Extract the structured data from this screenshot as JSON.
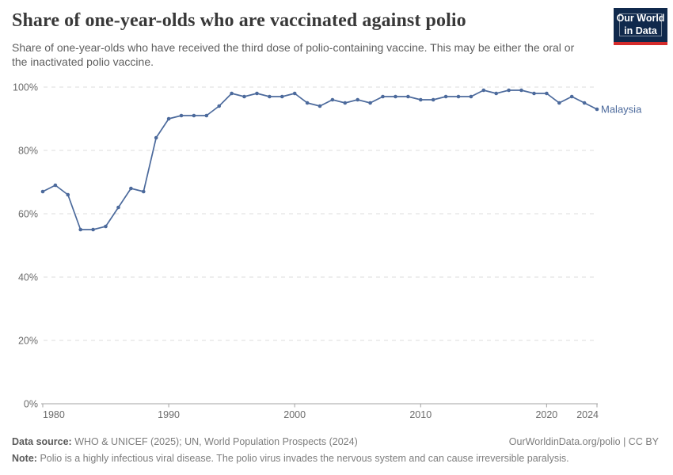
{
  "header": {
    "title": "Share of one-year-olds who are vaccinated against polio",
    "subtitle": "Share of one-year-olds who have received the third dose of polio-containing vaccine. This may be either the oral or the inactivated polio vaccine.",
    "logo_line1": "Our World",
    "logo_line2": "in Data"
  },
  "chart_data": {
    "type": "line",
    "title": "Share of one-year-olds who are vaccinated against polio",
    "xlabel": "",
    "ylabel": "",
    "xlim": [
      1980,
      2024
    ],
    "ylim": [
      0,
      100
    ],
    "x_ticks": [
      1980,
      1990,
      2000,
      2010,
      2020,
      2024
    ],
    "y_ticks": [
      0,
      20,
      40,
      60,
      80,
      100
    ],
    "y_tick_suffix": "%",
    "grid": "horizontal-dashed",
    "legend_position": "end-of-line-label",
    "entity_label": "Malaysia",
    "series": [
      {
        "name": "Malaysia",
        "color": "#4C6A9C",
        "x": [
          1980,
          1981,
          1982,
          1983,
          1984,
          1985,
          1986,
          1987,
          1988,
          1989,
          1990,
          1991,
          1992,
          1993,
          1994,
          1995,
          1996,
          1997,
          1998,
          1999,
          2000,
          2001,
          2002,
          2003,
          2004,
          2005,
          2006,
          2007,
          2008,
          2009,
          2010,
          2011,
          2012,
          2013,
          2014,
          2015,
          2016,
          2017,
          2018,
          2019,
          2020,
          2021,
          2022,
          2023,
          2024
        ],
        "values": [
          67,
          69,
          66,
          55,
          55,
          56,
          62,
          68,
          67,
          84,
          90,
          91,
          91,
          91,
          94,
          98,
          97,
          98,
          97,
          97,
          98,
          95,
          94,
          96,
          95,
          96,
          95,
          97,
          97,
          97,
          96,
          96,
          97,
          97,
          97,
          99,
          98,
          99,
          99,
          98,
          98,
          95,
          97,
          95,
          93
        ]
      }
    ]
  },
  "footer": {
    "source_label": "Data source:",
    "source_text": "WHO & UNICEF (2025); UN, World Population Prospects (2024)",
    "link_text": "OurWorldinData.org/polio | CC BY",
    "note_label": "Note:",
    "note_text": "Polio is a highly infectious viral disease. The polio virus invades the nervous system and can cause irreversible paralysis."
  },
  "colors": {
    "line": "#4C6A9C",
    "gridline": "#dcdcdc",
    "axis": "#a3a3a3",
    "tick_label": "#6b6b6b",
    "logo_bg": "#10294c",
    "logo_stripe": "#d42b2b"
  }
}
